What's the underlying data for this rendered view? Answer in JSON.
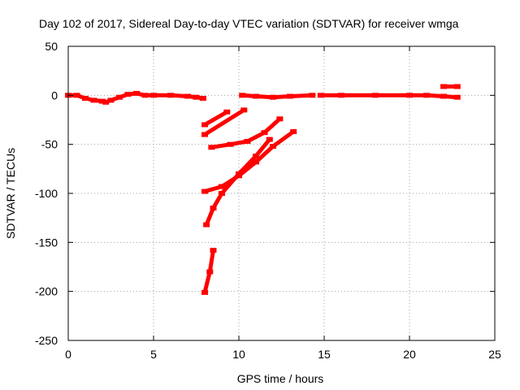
{
  "colors": {
    "series": "#ff0000",
    "grid": "#a0a0a0",
    "frame": "#000000"
  },
  "chart_data": {
    "type": "scatter",
    "title": "Day 102 of 2017, Sidereal Day-to-day VTEC variation (SDTVAR) for receiver wmga",
    "xlabel": "GPS time / hours",
    "ylabel": "SDTVAR / TECUs",
    "xlim": [
      0,
      25
    ],
    "ylim": [
      -250,
      50
    ],
    "xticks": [
      0,
      5,
      10,
      15,
      20,
      25
    ],
    "yticks": [
      -250,
      -200,
      -150,
      -100,
      -50,
      0,
      50
    ],
    "grid": true,
    "series": [
      {
        "x": [
          0,
          0.5,
          1,
          1.5,
          2,
          2.2,
          2.5,
          3,
          3.5,
          4,
          4.5,
          5,
          6,
          7,
          7.5,
          7.9
        ],
        "y": [
          0,
          0,
          -3,
          -5,
          -6,
          -7,
          -5,
          -2,
          1,
          2,
          0,
          0,
          0,
          -1,
          -2,
          -3
        ]
      },
      {
        "x": [
          10.2,
          11,
          12,
          13,
          14.3
        ],
        "y": [
          0,
          -1,
          -2,
          -1,
          0
        ]
      },
      {
        "x": [
          14.8,
          16,
          18,
          20,
          21,
          22,
          22.8
        ],
        "y": [
          0,
          0,
          0,
          0,
          0,
          -1,
          -2
        ]
      },
      {
        "x": [
          22,
          22.8
        ],
        "y": [
          9,
          9
        ]
      },
      {
        "x": [
          8,
          9.3
        ],
        "y": [
          -30,
          -17
        ]
      },
      {
        "x": [
          8,
          10.3
        ],
        "y": [
          -40,
          -15
        ]
      },
      {
        "x": [
          8.4,
          9.5,
          10.5,
          11.5,
          12.4
        ],
        "y": [
          -53,
          -50,
          -47,
          -38,
          -24
        ]
      },
      {
        "x": [
          8,
          9,
          10,
          11,
          12,
          13.2
        ],
        "y": [
          -98,
          -93,
          -82,
          -68,
          -52,
          -37
        ]
      },
      {
        "x": [
          8.1,
          8.5,
          9,
          10,
          11,
          11.8
        ],
        "y": [
          -132,
          -115,
          -100,
          -80,
          -62,
          -45
        ]
      },
      {
        "x": [
          8,
          8.3,
          8.5
        ],
        "y": [
          -201,
          -180,
          -158
        ]
      }
    ]
  }
}
